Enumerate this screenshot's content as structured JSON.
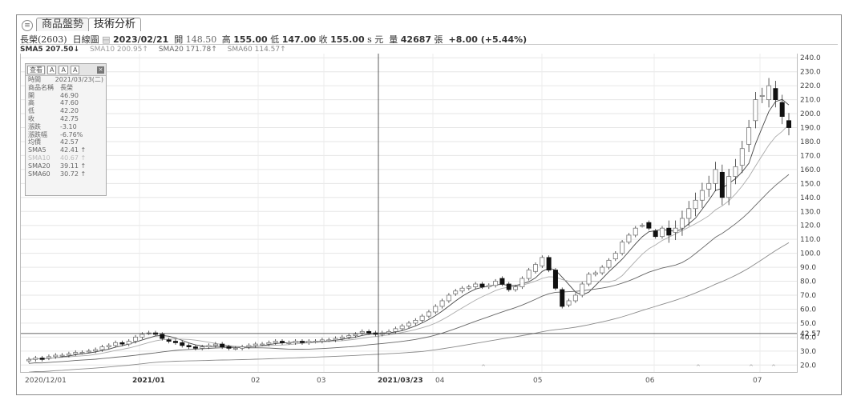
{
  "tabs": [
    {
      "label": "商品盤勢",
      "active": false
    },
    {
      "label": "技術分析",
      "active": true
    }
  ],
  "quote": {
    "symbol": "長榮(2603)",
    "period": "日線圖",
    "date": "2023/02/21",
    "open_label": "開",
    "open": "148.50",
    "high_label": "高",
    "high": "155.00",
    "low_label": "低",
    "low": "147.00",
    "close_label": "收",
    "close": "155.00",
    "unit_currency": "s 元",
    "volume_label": "量",
    "volume": "42687",
    "volume_unit": "張",
    "change": "+8.00 (+5.44%)"
  },
  "sma_bar": [
    {
      "label": "SMA5 207.50↓",
      "color": "#333333",
      "bold": true
    },
    {
      "label": "SMA10 200.95↑",
      "color": "#9a9a9a",
      "bold": false
    },
    {
      "label": "SMA20 171.78↑",
      "color": "#666666",
      "bold": false
    },
    {
      "label": "SMA60 114.57↑",
      "color": "#888888",
      "bold": false
    }
  ],
  "ohlc_panel": {
    "toolbar": [
      "查看",
      "A",
      "A",
      "A"
    ],
    "close_icon": "close-icon",
    "rows": [
      {
        "k": "時間",
        "v": "2021/03/23(二)",
        "faint": false
      },
      {
        "k": "商品名稱",
        "v": "長榮",
        "faint": false
      },
      {
        "k": "開",
        "v": "46.90",
        "faint": false
      },
      {
        "k": "高",
        "v": "47.60",
        "faint": false
      },
      {
        "k": "低",
        "v": "42.20",
        "faint": false
      },
      {
        "k": "收",
        "v": "42.75",
        "faint": false
      },
      {
        "k": "漲跌",
        "v": "-3.10",
        "faint": false
      },
      {
        "k": "漲跌幅",
        "v": "-6.76%",
        "faint": false
      },
      {
        "k": "均價",
        "v": "42.57",
        "faint": false
      },
      {
        "k": "SMA5",
        "v": "42.41 ↑",
        "faint": false
      },
      {
        "k": "SMA10",
        "v": "40.67 ↑",
        "faint": true
      },
      {
        "k": "SMA20",
        "v": "39.11 ↑",
        "faint": false
      },
      {
        "k": "SMA60",
        "v": "30.72 ↑",
        "faint": false
      }
    ]
  },
  "y_axis": {
    "ticks": [
      "240.0",
      "230.0",
      "220.0",
      "210.0",
      "200.0",
      "190.0",
      "180.0",
      "170.0",
      "160.0",
      "150.0",
      "140.0",
      "130.0",
      "120.0",
      "110.0",
      "100.0",
      "90.0",
      "80.0",
      "70.0",
      "60.0",
      "50.0",
      "40.0",
      "30.0",
      "20.0"
    ],
    "crosshair_label": "42.57",
    "min": 15,
    "max": 243
  },
  "x_axis": {
    "labels": [
      {
        "text": "2020/12/01",
        "bold": false
      },
      {
        "text": "2021/01",
        "bold": true
      },
      {
        "text": "02",
        "bold": false
      },
      {
        "text": "03",
        "bold": false
      },
      {
        "text": "2021/03/23",
        "bold": true
      },
      {
        "text": "04",
        "bold": false
      },
      {
        "text": "05",
        "bold": false
      },
      {
        "text": "06",
        "bold": false
      },
      {
        "text": "07",
        "bold": false
      }
    ]
  },
  "chart_data": {
    "type": "candlestick",
    "title": "長榮(2603) 日線圖",
    "crosshair_value": 42.57,
    "ylim": [
      15,
      243
    ],
    "closes": [
      24,
      25,
      24,
      26,
      27,
      27,
      28,
      29,
      29,
      30,
      31,
      33,
      34,
      36,
      35,
      37,
      40,
      42,
      43,
      42,
      39,
      37,
      36,
      34,
      33,
      32,
      33,
      34,
      35,
      33,
      32,
      32,
      33,
      34,
      35,
      35,
      36,
      37,
      36,
      36,
      37,
      36,
      37,
      37,
      38,
      38,
      39,
      40,
      41,
      42,
      44,
      43,
      42,
      43,
      44,
      46,
      48,
      50,
      52,
      55,
      58,
      62,
      66,
      70,
      73,
      75,
      76,
      78,
      76,
      77,
      80,
      78,
      74,
      76,
      82,
      88,
      92,
      97,
      88,
      75,
      62,
      66,
      70,
      78,
      85,
      86,
      90,
      95,
      100,
      108,
      113,
      118,
      120,
      118,
      112,
      118,
      113,
      118,
      125,
      132,
      138,
      145,
      150,
      160,
      140,
      155,
      162,
      175,
      190,
      210,
      213,
      220,
      210,
      198,
      190
    ],
    "opens": [
      23,
      24,
      25,
      25,
      26,
      27,
      27,
      28,
      29,
      30,
      30,
      31,
      33,
      34,
      36,
      35,
      37,
      40,
      43,
      43,
      42,
      38,
      37,
      36,
      34,
      33,
      32,
      33,
      34,
      35,
      33,
      32,
      32,
      33,
      34,
      35,
      35,
      36,
      37,
      36,
      36,
      37,
      36,
      37,
      37,
      38,
      38,
      39,
      40,
      41,
      43,
      44,
      43,
      42,
      43,
      44,
      46,
      48,
      50,
      52,
      55,
      58,
      62,
      66,
      71,
      73,
      75,
      76,
      78,
      76,
      77,
      82,
      78,
      74,
      76,
      82,
      87,
      91,
      97,
      88,
      74,
      63,
      66,
      70,
      78,
      85,
      86,
      90,
      96,
      100,
      108,
      113,
      120,
      122,
      116,
      112,
      118,
      115,
      118,
      125,
      132,
      138,
      146,
      150,
      158,
      140,
      155,
      163,
      178,
      195,
      213,
      210,
      218,
      208,
      195
    ],
    "sma_series": [
      "SMA5",
      "SMA10",
      "SMA20",
      "SMA60"
    ]
  }
}
